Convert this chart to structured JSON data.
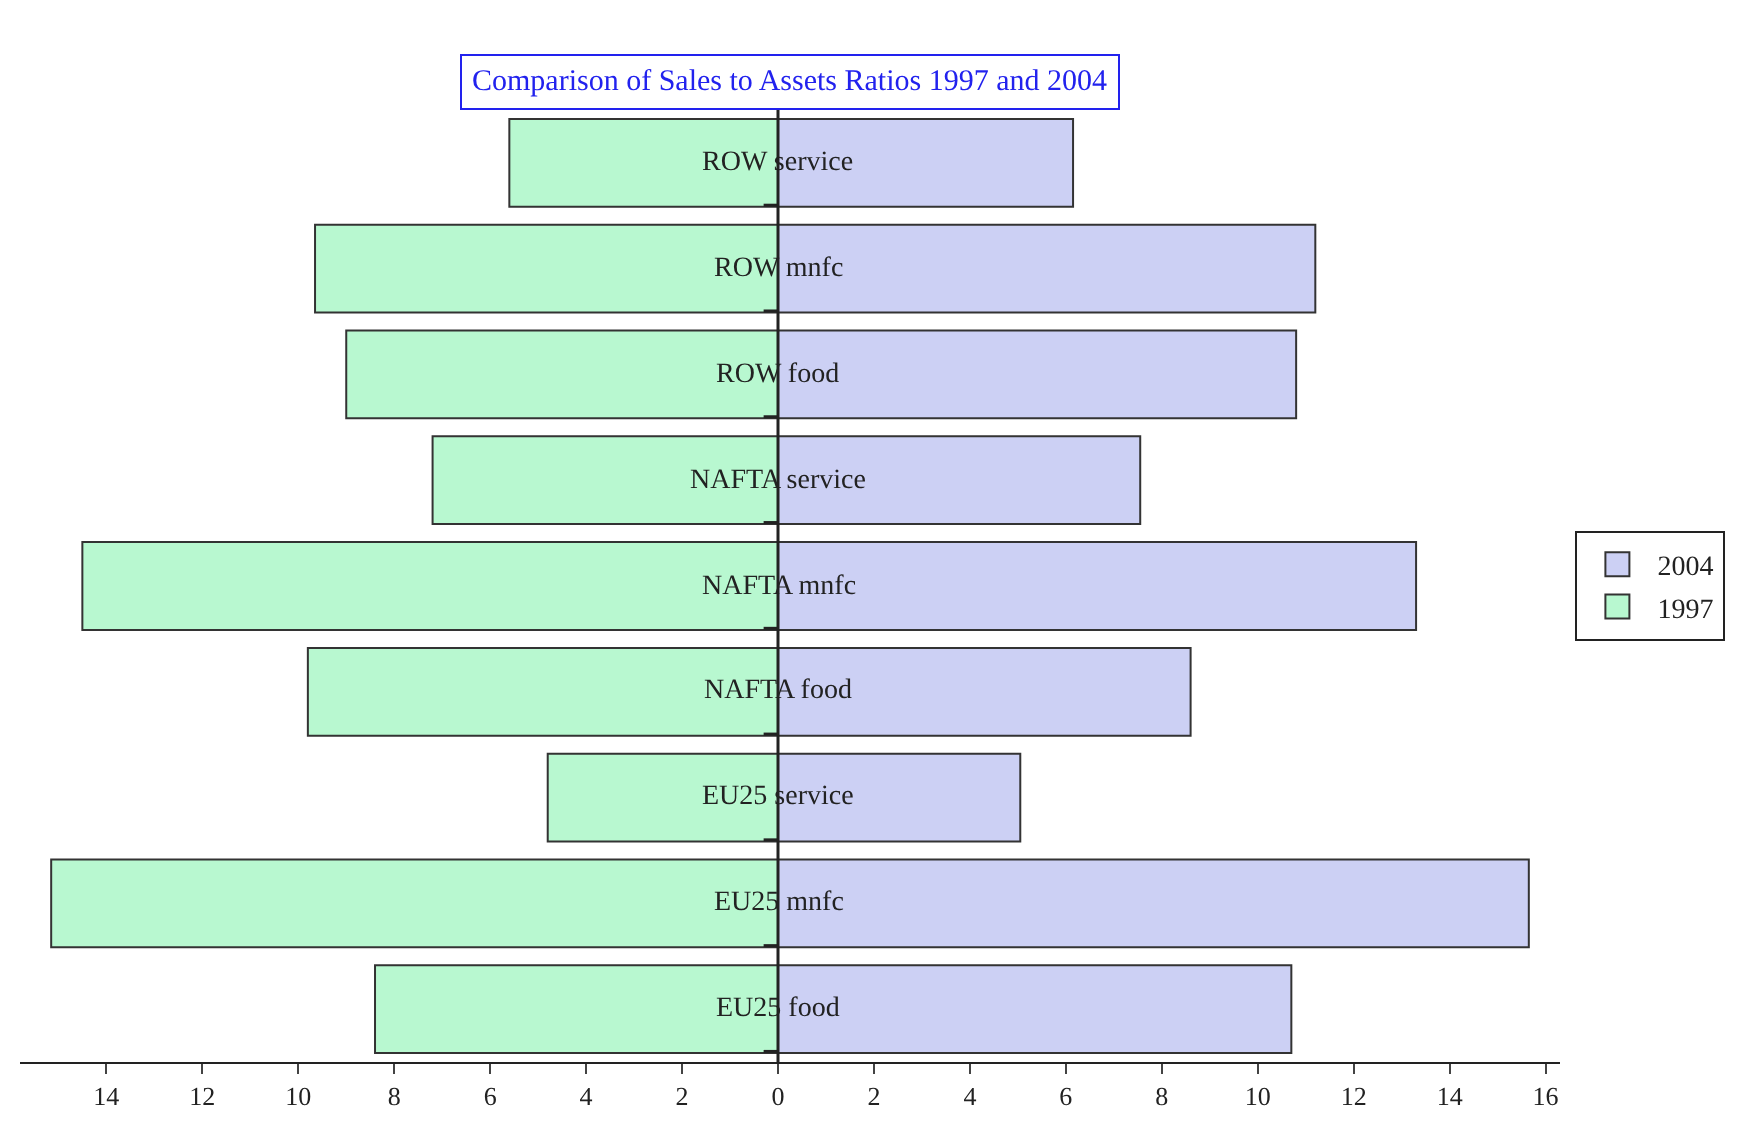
{
  "chart_data": {
    "type": "bar",
    "orientation": "horizontal",
    "stacked": true,
    "title": "Comparison of Sales to Assets Ratios 1997 and 2004",
    "categories": [
      "ROW service",
      "ROW mnfc",
      "ROW food",
      "NAFTA service",
      "NAFTA mnfc",
      "NAFTA food",
      "EU25 service",
      "EU25 mnfc",
      "EU25 food"
    ],
    "series": [
      {
        "name": "2004",
        "color": "#ccd0f4",
        "values": [
          6.15,
          11.2,
          10.8,
          7.55,
          13.3,
          8.6,
          5.05,
          15.65,
          10.7
        ]
      },
      {
        "name": "1997",
        "color": "#b8f8d0",
        "values": [
          -5.6,
          -9.65,
          -9.0,
          -7.2,
          -14.5,
          -9.8,
          -4.8,
          -15.15,
          -8.4
        ]
      }
    ],
    "xlim": [
      -15.8,
      16.3
    ],
    "xticks": [
      {
        "value": -14,
        "label": "14"
      },
      {
        "value": -12,
        "label": "12"
      },
      {
        "value": -10,
        "label": "10"
      },
      {
        "value": -8,
        "label": "8"
      },
      {
        "value": -6,
        "label": "6"
      },
      {
        "value": -4,
        "label": "4"
      },
      {
        "value": -2,
        "label": "2"
      },
      0,
      2,
      4,
      6,
      8,
      10,
      12,
      14,
      16
    ],
    "legend": "right"
  }
}
